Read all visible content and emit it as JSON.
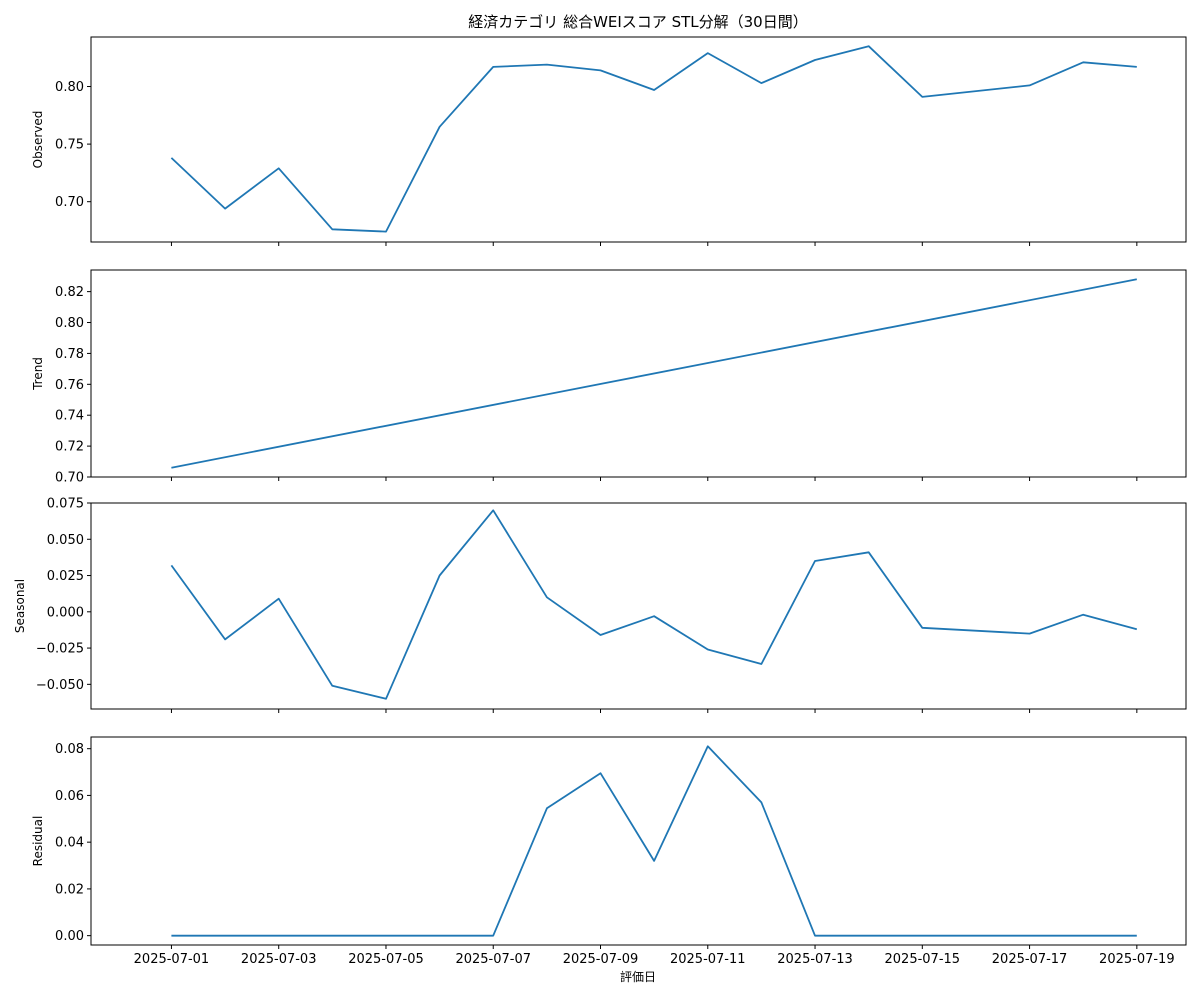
{
  "figure": {
    "title": "経済カテゴリ 総合WEIスコア STL分解（30日間）",
    "xlabel": "評価日",
    "line_color": "#1f77b4"
  },
  "chart_data": [
    {
      "type": "line",
      "ylabel": "Observed",
      "x": [
        "2025-07-01",
        "2025-07-02",
        "2025-07-03",
        "2025-07-04",
        "2025-07-05",
        "2025-07-06",
        "2025-07-07",
        "2025-07-08",
        "2025-07-09",
        "2025-07-10",
        "2025-07-11",
        "2025-07-12",
        "2025-07-13",
        "2025-07-14",
        "2025-07-15",
        "2025-07-17",
        "2025-07-18",
        "2025-07-19"
      ],
      "values": [
        0.738,
        0.694,
        0.729,
        0.676,
        0.674,
        0.765,
        0.817,
        0.819,
        0.814,
        0.797,
        0.829,
        0.803,
        0.823,
        0.835,
        0.791,
        0.801,
        0.821,
        0.817
      ],
      "ylim": [
        0.665,
        0.843
      ],
      "yticks": [
        0.7,
        0.75,
        0.8
      ],
      "ytick_labels": [
        "0.70",
        "0.75",
        "0.80"
      ]
    },
    {
      "type": "line",
      "ylabel": "Trend",
      "x": [
        "2025-07-01",
        "2025-07-19"
      ],
      "values": [
        0.706,
        0.828
      ],
      "ylim": [
        0.7,
        0.834
      ],
      "yticks": [
        0.7,
        0.72,
        0.74,
        0.76,
        0.78,
        0.8,
        0.82
      ],
      "ytick_labels": [
        "0.70",
        "0.72",
        "0.74",
        "0.76",
        "0.78",
        "0.80",
        "0.82"
      ]
    },
    {
      "type": "line",
      "ylabel": "Seasonal",
      "x": [
        "2025-07-01",
        "2025-07-02",
        "2025-07-03",
        "2025-07-04",
        "2025-07-05",
        "2025-07-06",
        "2025-07-07",
        "2025-07-08",
        "2025-07-09",
        "2025-07-10",
        "2025-07-11",
        "2025-07-12",
        "2025-07-13",
        "2025-07-14",
        "2025-07-15",
        "2025-07-17",
        "2025-07-18",
        "2025-07-19"
      ],
      "values": [
        0.032,
        -0.019,
        0.009,
        -0.051,
        -0.06,
        0.025,
        0.07,
        0.01,
        -0.016,
        -0.003,
        -0.026,
        -0.036,
        0.035,
        0.041,
        -0.011,
        -0.015,
        -0.002,
        -0.012
      ],
      "ylim": [
        -0.067,
        0.075
      ],
      "yticks": [
        -0.05,
        -0.025,
        0.0,
        0.025,
        0.05,
        0.075
      ],
      "ytick_labels": [
        "−0.050",
        "−0.025",
        "0.000",
        "0.025",
        "0.050",
        "0.075"
      ]
    },
    {
      "type": "line",
      "ylabel": "Residual",
      "x": [
        "2025-07-01",
        "2025-07-02",
        "2025-07-03",
        "2025-07-04",
        "2025-07-05",
        "2025-07-06",
        "2025-07-07",
        "2025-07-08",
        "2025-07-09",
        "2025-07-10",
        "2025-07-11",
        "2025-07-12",
        "2025-07-13",
        "2025-07-14",
        "2025-07-15",
        "2025-07-17",
        "2025-07-18",
        "2025-07-19"
      ],
      "values": [
        0,
        0,
        0,
        0,
        0,
        0,
        0,
        0.0545,
        0.0695,
        0.032,
        0.081,
        0.057,
        0,
        0,
        0,
        0,
        0,
        0
      ],
      "ylim": [
        -0.004,
        0.085
      ],
      "yticks": [
        0.0,
        0.02,
        0.04,
        0.06,
        0.08
      ],
      "ytick_labels": [
        "0.00",
        "0.02",
        "0.04",
        "0.06",
        "0.08"
      ]
    }
  ],
  "x_axis": {
    "xlim": [
      "2025-06-29 12:00",
      "2025-07-19 22:00"
    ],
    "ticks": [
      "2025-07-01",
      "2025-07-03",
      "2025-07-05",
      "2025-07-07",
      "2025-07-09",
      "2025-07-11",
      "2025-07-13",
      "2025-07-15",
      "2025-07-17",
      "2025-07-19"
    ],
    "tick_labels": [
      "2025-07-01",
      "2025-07-03",
      "2025-07-05",
      "2025-07-07",
      "2025-07-09",
      "2025-07-11",
      "2025-07-13",
      "2025-07-15",
      "2025-07-17",
      "2025-07-19"
    ]
  }
}
